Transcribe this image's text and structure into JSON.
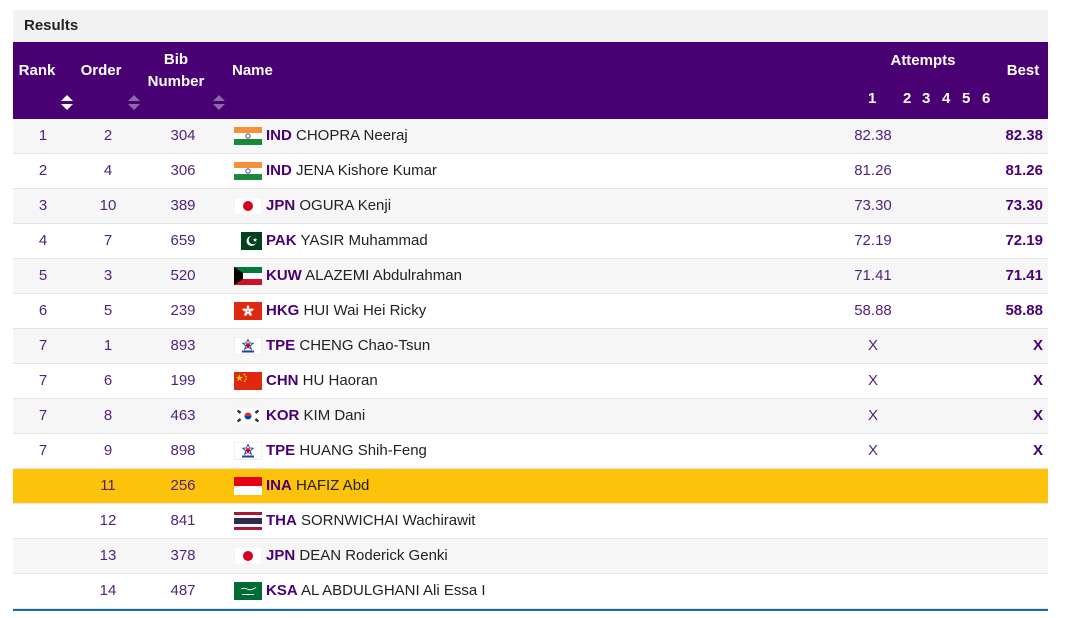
{
  "results_title": "Results",
  "header": {
    "rank": "Rank",
    "order": "Order",
    "bib_line1": "Bib",
    "bib_line2": "Number",
    "name": "Name",
    "attempts": "Attempts",
    "attempt_numbers": [
      "1",
      "2",
      "3",
      "4",
      "5",
      "6"
    ],
    "best": "Best"
  },
  "colors": {
    "header_bg": "#480073",
    "highlight": "#fcc30a",
    "text_accent": "#480073",
    "bottom_border": "#1b6ca8"
  },
  "rows": [
    {
      "rank": "1",
      "order": "2",
      "bib": "304",
      "noc": "IND",
      "name": "CHOPRA Neeraj",
      "flag": "ind-flag-icon",
      "attempt1": "82.38",
      "best": "82.38",
      "highlight": false
    },
    {
      "rank": "2",
      "order": "4",
      "bib": "306",
      "noc": "IND",
      "name": "JENA Kishore Kumar",
      "flag": "ind-flag-icon",
      "attempt1": "81.26",
      "best": "81.26",
      "highlight": false
    },
    {
      "rank": "3",
      "order": "10",
      "bib": "389",
      "noc": "JPN",
      "name": "OGURA Kenji",
      "flag": "jpn-flag-icon",
      "attempt1": "73.30",
      "best": "73.30",
      "highlight": false
    },
    {
      "rank": "4",
      "order": "7",
      "bib": "659",
      "noc": "PAK",
      "name": "YASIR Muhammad",
      "flag": "pak-flag-icon",
      "attempt1": "72.19",
      "best": "72.19",
      "highlight": false
    },
    {
      "rank": "5",
      "order": "3",
      "bib": "520",
      "noc": "KUW",
      "name": "ALAZEMI Abdulrahman",
      "flag": "kuw-flag-icon",
      "attempt1": "71.41",
      "best": "71.41",
      "highlight": false
    },
    {
      "rank": "6",
      "order": "5",
      "bib": "239",
      "noc": "HKG",
      "name": "HUI Wai Hei Ricky",
      "flag": "hkg-flag-icon",
      "attempt1": "58.88",
      "best": "58.88",
      "highlight": false
    },
    {
      "rank": "7",
      "order": "1",
      "bib": "893",
      "noc": "TPE",
      "name": "CHENG Chao-Tsun",
      "flag": "tpe-flag-icon",
      "attempt1": "X",
      "best": "X",
      "highlight": false
    },
    {
      "rank": "7",
      "order": "6",
      "bib": "199",
      "noc": "CHN",
      "name": "HU Haoran",
      "flag": "chn-flag-icon",
      "attempt1": "X",
      "best": "X",
      "highlight": false
    },
    {
      "rank": "7",
      "order": "8",
      "bib": "463",
      "noc": "KOR",
      "name": "KIM Dani",
      "flag": "kor-flag-icon",
      "attempt1": "X",
      "best": "X",
      "highlight": false
    },
    {
      "rank": "7",
      "order": "9",
      "bib": "898",
      "noc": "TPE",
      "name": "HUANG Shih-Feng",
      "flag": "tpe-flag-icon",
      "attempt1": "X",
      "best": "X",
      "highlight": false
    },
    {
      "rank": "",
      "order": "11",
      "bib": "256",
      "noc": "INA",
      "name": "HAFIZ Abd",
      "flag": "ina-flag-icon",
      "attempt1": "",
      "best": "",
      "highlight": true
    },
    {
      "rank": "",
      "order": "12",
      "bib": "841",
      "noc": "THA",
      "name": "SORNWICHAI Wachirawit",
      "flag": "tha-flag-icon",
      "attempt1": "",
      "best": "",
      "highlight": false
    },
    {
      "rank": "",
      "order": "13",
      "bib": "378",
      "noc": "JPN",
      "name": "DEAN Roderick Genki",
      "flag": "jpn-flag-icon",
      "attempt1": "",
      "best": "",
      "highlight": false
    },
    {
      "rank": "",
      "order": "14",
      "bib": "487",
      "noc": "KSA",
      "name": "AL ABDULGHANI Ali Essa I",
      "flag": "ksa-flag-icon",
      "attempt1": "",
      "best": "",
      "highlight": false
    }
  ]
}
